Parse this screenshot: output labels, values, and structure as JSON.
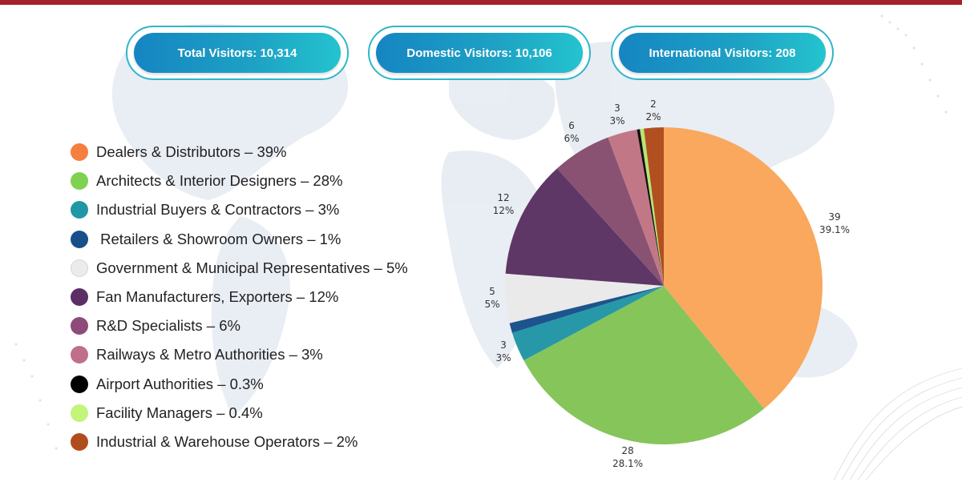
{
  "stats": {
    "total": "Total Visitors: 10,314",
    "domestic": "Domestic Visitors: 10,106",
    "international": "International Visitors: 208"
  },
  "legend": [
    {
      "label": "Dealers & Distributors – 39%",
      "color": "#f47f3e"
    },
    {
      "label": "Architects & Interior Designers – 28%",
      "color": "#7fd152"
    },
    {
      "label": "Industrial Buyers & Contractors – 3%",
      "color": "#1f97a6"
    },
    {
      "label": " Retailers & Showroom Owners – 1%",
      "color": "#174f8c"
    },
    {
      "label": "Government & Municipal Representatives – 5%",
      "color": "#ebebeb"
    },
    {
      "label": "Fan Manufacturers, Exporters – 12%",
      "color": "#5b2f66"
    },
    {
      "label": "R&D Specialists – 6%",
      "color": "#8e4a79"
    },
    {
      "label": "Railways & Metro Authorities – 3%",
      "color": "#c06f8a"
    },
    {
      "label": "Airport Authorities – 0.3%",
      "color": "#000000"
    },
    {
      "label": "Facility Managers – 0.4%",
      "color": "#c2f57a"
    },
    {
      "label": "Industrial & Warehouse Operators – 2%",
      "color": "#b14d1c"
    }
  ],
  "chart_data": {
    "type": "pie",
    "start": "top, clockwise",
    "slices": [
      {
        "category": "Dealers & Distributors",
        "value": 39,
        "percent": "39.1%",
        "color": "#f9a85e",
        "label_value": "39"
      },
      {
        "category": "Architects & Interior Designers",
        "value": 28,
        "percent": "28.1%",
        "color": "#86c55a",
        "label_value": "28"
      },
      {
        "category": "Industrial Buyers & Contractors",
        "value": 3,
        "percent": "3%",
        "color": "#2798a8",
        "label_value": "3"
      },
      {
        "category": "Retailers & Showroom Owners",
        "value": 1,
        "percent": "",
        "color": "#1d548e",
        "label_value": ""
      },
      {
        "category": "Government & Municipal Representatives",
        "value": 5,
        "percent": "5%",
        "color": "#eaeaea",
        "label_value": "5"
      },
      {
        "category": "Fan Manufacturers, Exporters",
        "value": 12,
        "percent": "12%",
        "color": "#5e3766",
        "label_value": "12"
      },
      {
        "category": "R&D Specialists",
        "value": 6,
        "percent": "6%",
        "color": "#8a5272",
        "label_value": "6"
      },
      {
        "category": "Railways & Metro Authorities",
        "value": 3,
        "percent": "3%",
        "color": "#c27787",
        "label_value": "3"
      },
      {
        "category": "Airport Authorities",
        "value": 0.3,
        "percent": "",
        "color": "#111111",
        "label_value": ""
      },
      {
        "category": "Facility Managers",
        "value": 0.4,
        "percent": "",
        "color": "#b6e66f",
        "label_value": ""
      },
      {
        "category": "Industrial & Warehouse Operators",
        "value": 2,
        "percent": "2%",
        "color": "#b24f21",
        "label_value": "2"
      }
    ]
  }
}
